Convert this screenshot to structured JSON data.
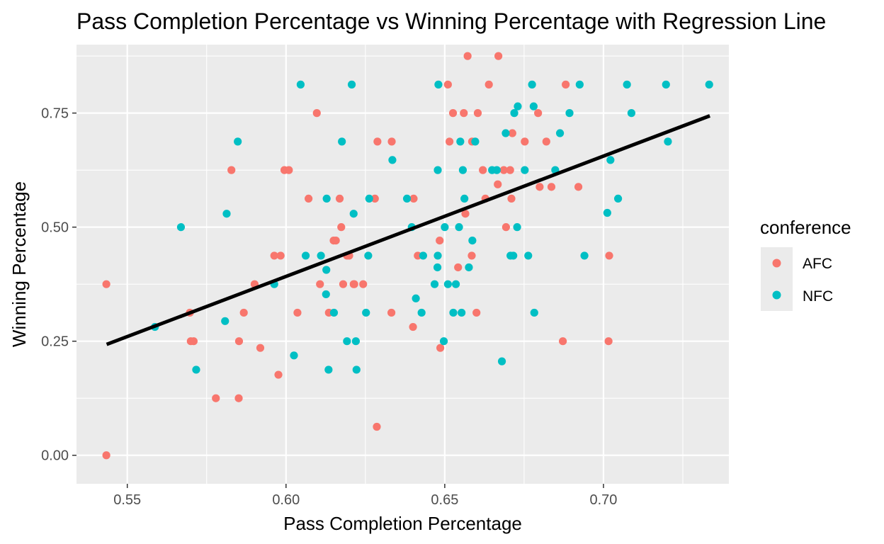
{
  "chart_data": {
    "type": "scatter",
    "title": "Pass Completion Percentage vs Winning Percentage with Regression Line",
    "xlabel": "Pass Completion Percentage",
    "ylabel": "Winning Percentage",
    "xlim": [
      0.534,
      0.7395
    ],
    "ylim": [
      -0.0625,
      0.9
    ],
    "x_ticks": [
      0.55,
      0.6,
      0.65,
      0.7
    ],
    "x_tick_labels": [
      "0.55",
      "0.60",
      "0.65",
      "0.70"
    ],
    "y_ticks": [
      0.0,
      0.25,
      0.5,
      0.75
    ],
    "y_tick_labels": [
      "0.00",
      "0.25",
      "0.50",
      "0.75"
    ],
    "grid": true,
    "legend": {
      "title": "conference",
      "placement": "right",
      "entries": [
        {
          "label": "AFC",
          "color": "#F8766D"
        },
        {
          "label": "NFC",
          "color": "#00BFC4"
        }
      ]
    },
    "regression_line": {
      "x": [
        0.5435,
        0.7335
      ],
      "y": [
        0.243,
        0.744
      ],
      "color": "#000000"
    },
    "series": [
      {
        "name": "AFC",
        "color": "#F8766D",
        "x": [
          0.5434,
          0.5434,
          0.5697,
          0.57,
          0.5709,
          0.5779,
          0.5828,
          0.5851,
          0.5852,
          0.5867,
          0.5901,
          0.5919,
          0.5963,
          0.5976,
          0.5983,
          0.5995,
          0.6009,
          0.6036,
          0.6071,
          0.6097,
          0.6107,
          0.6135,
          0.615,
          0.6157,
          0.6169,
          0.6174,
          0.618,
          0.6192,
          0.6199,
          0.6213,
          0.6215,
          0.6243,
          0.628,
          0.6286,
          0.6288,
          0.6332,
          0.6333,
          0.64,
          0.6402,
          0.6415,
          0.6484,
          0.6486,
          0.651,
          0.6515,
          0.6526,
          0.6542,
          0.656,
          0.6565,
          0.6572,
          0.6585,
          0.6586,
          0.66,
          0.6604,
          0.662,
          0.6628,
          0.6639,
          0.6667,
          0.6669,
          0.6686,
          0.6693,
          0.6706,
          0.671,
          0.6713,
          0.6752,
          0.6794,
          0.6799,
          0.682,
          0.6836,
          0.6872,
          0.6881,
          0.6921,
          0.7016,
          0.7018
        ],
        "y": [
          0.0,
          0.375,
          0.3125,
          0.25,
          0.25,
          0.125,
          0.625,
          0.125,
          0.25,
          0.3125,
          0.375,
          0.2353,
          0.4375,
          0.1765,
          0.4375,
          0.625,
          0.625,
          0.3125,
          0.5625,
          0.75,
          0.375,
          0.3125,
          0.4706,
          0.4706,
          0.5625,
          0.5,
          0.375,
          0.4375,
          0.4375,
          0.375,
          0.375,
          0.375,
          0.5625,
          0.0625,
          0.6875,
          0.3125,
          0.6875,
          0.2813,
          0.5625,
          0.4375,
          0.4706,
          0.2353,
          0.8125,
          0.6875,
          0.75,
          0.4118,
          0.75,
          0.5294,
          0.875,
          0.4375,
          0.6875,
          0.3125,
          0.75,
          0.625,
          0.5625,
          0.8125,
          0.5938,
          0.875,
          0.625,
          0.5,
          0.625,
          0.5625,
          0.7059,
          0.6875,
          0.75,
          0.5882,
          0.6875,
          0.5882,
          0.25,
          0.8125,
          0.5882,
          0.25,
          0.4375
        ]
      },
      {
        "name": "NFC",
        "color": "#00BFC4",
        "x": [
          0.5587,
          0.5669,
          0.5717,
          0.5808,
          0.5813,
          0.5848,
          0.5963,
          0.6025,
          0.6046,
          0.6062,
          0.611,
          0.6126,
          0.6127,
          0.6128,
          0.6134,
          0.6151,
          0.6176,
          0.6192,
          0.6207,
          0.6213,
          0.622,
          0.6222,
          0.6252,
          0.6259,
          0.6262,
          0.6335,
          0.6381,
          0.6396,
          0.6409,
          0.6427,
          0.6432,
          0.6468,
          0.6477,
          0.6478,
          0.6478,
          0.648,
          0.6497,
          0.65,
          0.651,
          0.6527,
          0.6535,
          0.6545,
          0.6549,
          0.6553,
          0.6557,
          0.6562,
          0.6576,
          0.6587,
          0.6596,
          0.6649,
          0.6664,
          0.668,
          0.6692,
          0.6707,
          0.6716,
          0.6719,
          0.6728,
          0.673,
          0.6752,
          0.6763,
          0.6775,
          0.678,
          0.6782,
          0.6848,
          0.6863,
          0.6893,
          0.6925,
          0.694,
          0.7012,
          0.7022,
          0.7046,
          0.7074,
          0.7088,
          0.7197,
          0.7203,
          0.7333
        ],
        "y": [
          0.2813,
          0.5,
          0.1875,
          0.2941,
          0.5294,
          0.6875,
          0.375,
          0.2188,
          0.8125,
          0.4375,
          0.4375,
          0.3529,
          0.4063,
          0.5625,
          0.1875,
          0.3125,
          0.6875,
          0.25,
          0.8125,
          0.5294,
          0.25,
          0.1875,
          0.3125,
          0.4375,
          0.5625,
          0.6471,
          0.5625,
          0.5,
          0.3438,
          0.3125,
          0.4375,
          0.375,
          0.4118,
          0.625,
          0.4375,
          0.8125,
          0.25,
          0.5,
          0.375,
          0.3125,
          0.375,
          0.5,
          0.6875,
          0.3125,
          0.625,
          0.5625,
          0.4118,
          0.4706,
          0.6875,
          0.625,
          0.625,
          0.2059,
          0.7059,
          0.4375,
          0.4375,
          0.75,
          0.5,
          0.7647,
          0.625,
          0.4375,
          0.8125,
          0.7647,
          0.3125,
          0.625,
          0.7059,
          0.75,
          0.8125,
          0.4375,
          0.5313,
          0.6471,
          0.5625,
          0.8125,
          0.75,
          0.8125,
          0.6875,
          0.8125
        ]
      }
    ]
  }
}
